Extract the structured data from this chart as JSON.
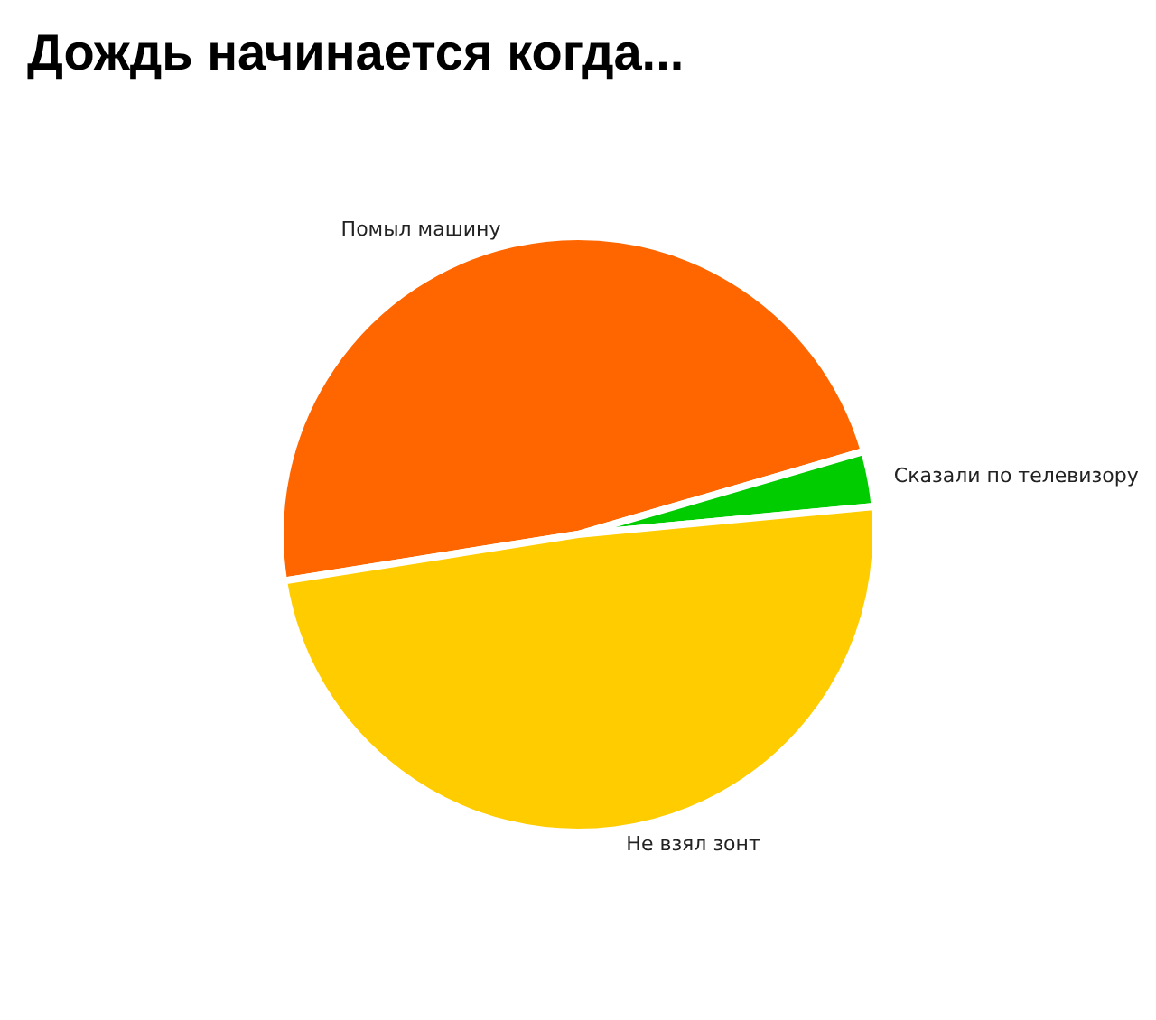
{
  "chart_data": {
    "type": "pie",
    "title": "Дождь начинается когда...",
    "categories": [
      "Помыл машину",
      "Сказали по телевизору",
      "Не взял зонт"
    ],
    "values": [
      48,
      3,
      49
    ],
    "colors": [
      "#ff6600",
      "#00cc00",
      "#ffcc00"
    ]
  }
}
